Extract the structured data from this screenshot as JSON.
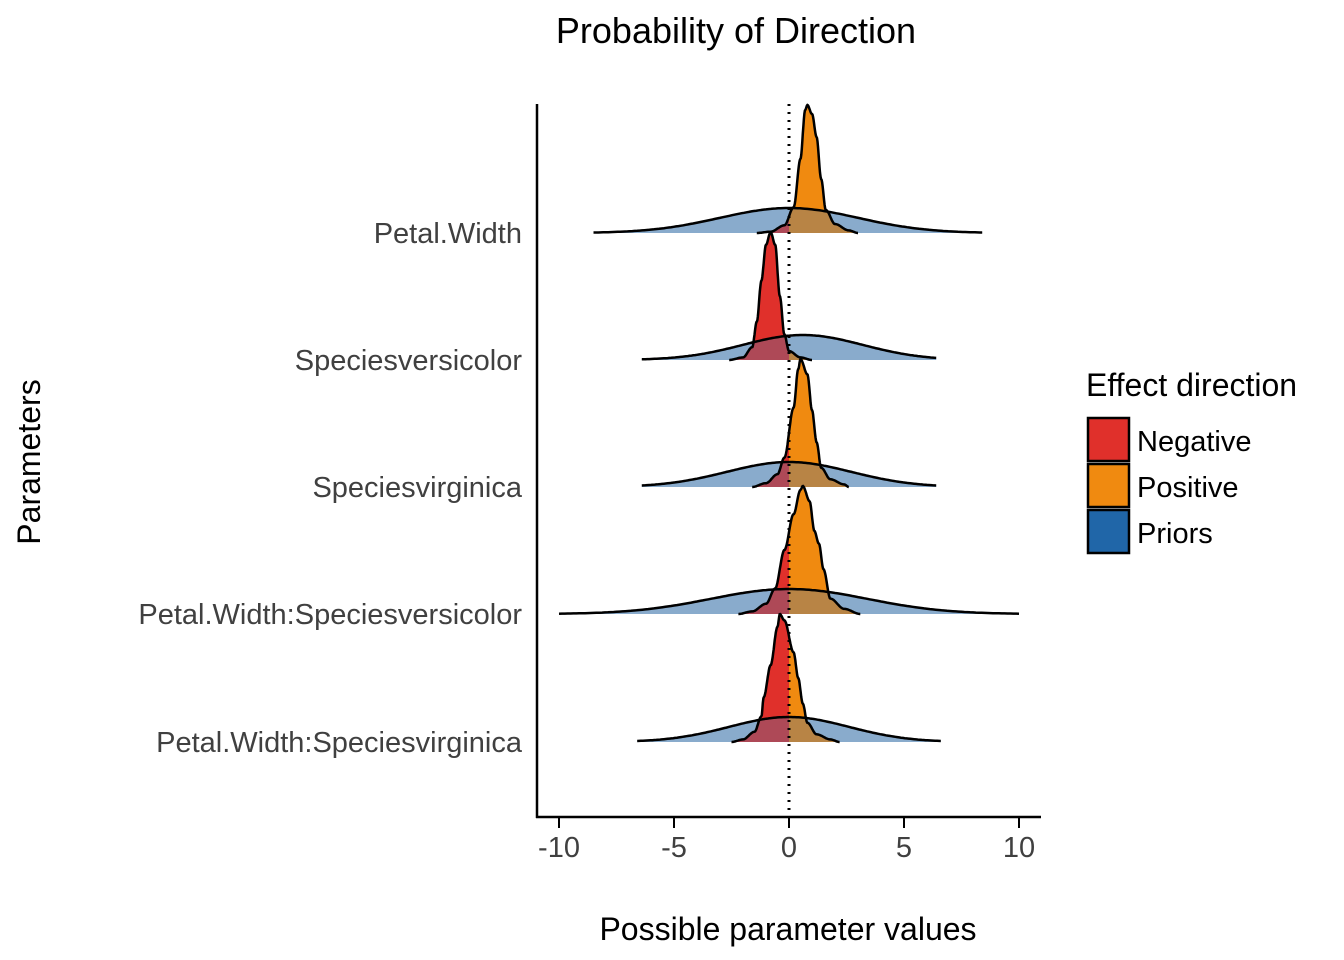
{
  "chart_data": {
    "type": "area",
    "subtype": "ridgeline density",
    "title": "Probability of Direction",
    "xlabel": "Possible parameter values",
    "ylabel": "Parameters",
    "xlim": [
      -11,
      11
    ],
    "xticks": [
      -10,
      -5,
      0,
      5,
      10
    ],
    "xtick_labels": [
      "-10",
      "-5",
      "0",
      "5",
      "10"
    ],
    "reference_line": {
      "x": 0,
      "style": "dotted"
    },
    "grid": false,
    "legend": {
      "title": "Effect direction",
      "placement": "right",
      "entries": [
        {
          "label": "Negative",
          "color": "#e0302b"
        },
        {
          "label": "Positive",
          "color": "#f08a10"
        },
        {
          "label": "Priors",
          "color": "#2066a8"
        }
      ]
    },
    "colors": {
      "negative": "#e0302b",
      "positive": "#f08a10",
      "priors": "#a8c6df",
      "overlap_negative": "#a04a62",
      "overlap_positive": "#a68350"
    },
    "parameters": [
      {
        "name": "Petal.Width",
        "prior": {
          "mean": 0,
          "sd": 3.0,
          "min": -8.5,
          "max": 8.4
        },
        "posterior": {
          "points": [
            [
              -1.4,
              0
            ],
            [
              -0.8,
              0.01
            ],
            [
              -0.2,
              0.06
            ],
            [
              0.2,
              0.2
            ],
            [
              0.5,
              0.58
            ],
            [
              0.7,
              0.96
            ],
            [
              0.8,
              1.0
            ],
            [
              1.0,
              0.93
            ],
            [
              1.2,
              0.75
            ],
            [
              1.4,
              0.42
            ],
            [
              1.6,
              0.18
            ],
            [
              2.0,
              0.07
            ],
            [
              2.6,
              0.02
            ],
            [
              3.0,
              0
            ]
          ]
        }
      },
      {
        "name": "Speciesversicolor",
        "prior": {
          "mean": 0.6,
          "sd": 2.6,
          "min": -6.4,
          "max": 6.4
        },
        "posterior": {
          "points": [
            [
              -2.6,
              0
            ],
            [
              -2.0,
              0.02
            ],
            [
              -1.6,
              0.1
            ],
            [
              -1.4,
              0.3
            ],
            [
              -1.2,
              0.62
            ],
            [
              -1.0,
              0.9
            ],
            [
              -0.8,
              1.0
            ],
            [
              -0.6,
              0.9
            ],
            [
              -0.4,
              0.5
            ],
            [
              -0.2,
              0.2
            ],
            [
              0.0,
              0.07
            ],
            [
              0.5,
              0.02
            ],
            [
              1.0,
              0
            ]
          ]
        }
      },
      {
        "name": "Speciesvirginica",
        "prior": {
          "mean": 0,
          "sd": 2.7,
          "min": -6.4,
          "max": 6.4
        },
        "posterior": {
          "points": [
            [
              -1.6,
              0
            ],
            [
              -1.0,
              0.03
            ],
            [
              -0.5,
              0.1
            ],
            [
              -0.2,
              0.23
            ],
            [
              0.2,
              0.62
            ],
            [
              0.4,
              0.92
            ],
            [
              0.5,
              1.0
            ],
            [
              0.8,
              0.88
            ],
            [
              1.0,
              0.6
            ],
            [
              1.2,
              0.35
            ],
            [
              1.4,
              0.15
            ],
            [
              1.8,
              0.06
            ],
            [
              2.4,
              0.02
            ],
            [
              2.6,
              0
            ]
          ]
        }
      },
      {
        "name": "Petal.Width:Speciesversicolor",
        "prior": {
          "mean": 0,
          "sd": 3.4,
          "min": -10.0,
          "max": 10.0
        },
        "posterior": {
          "points": [
            [
              -2.2,
              0
            ],
            [
              -1.6,
              0.02
            ],
            [
              -1.0,
              0.08
            ],
            [
              -0.6,
              0.2
            ],
            [
              -0.2,
              0.5
            ],
            [
              0.2,
              0.78
            ],
            [
              0.5,
              0.97
            ],
            [
              0.6,
              1.0
            ],
            [
              0.9,
              0.88
            ],
            [
              1.1,
              0.65
            ],
            [
              1.3,
              0.55
            ],
            [
              1.5,
              0.35
            ],
            [
              1.8,
              0.12
            ],
            [
              2.4,
              0.04
            ],
            [
              3.1,
              0
            ]
          ]
        }
      },
      {
        "name": "Petal.Width:Speciesvirginica",
        "prior": {
          "mean": 0,
          "sd": 2.6,
          "min": -6.6,
          "max": 6.6
        },
        "posterior": {
          "points": [
            [
              -2.5,
              0
            ],
            [
              -2.0,
              0.02
            ],
            [
              -1.5,
              0.08
            ],
            [
              -1.2,
              0.2
            ],
            [
              -1.1,
              0.35
            ],
            [
              -0.8,
              0.6
            ],
            [
              -0.5,
              0.9
            ],
            [
              -0.4,
              1.0
            ],
            [
              -0.2,
              0.95
            ],
            [
              0.2,
              0.7
            ],
            [
              0.4,
              0.5
            ],
            [
              0.6,
              0.3
            ],
            [
              0.8,
              0.15
            ],
            [
              1.2,
              0.06
            ],
            [
              1.8,
              0.02
            ],
            [
              2.2,
              0
            ]
          ]
        }
      }
    ]
  }
}
